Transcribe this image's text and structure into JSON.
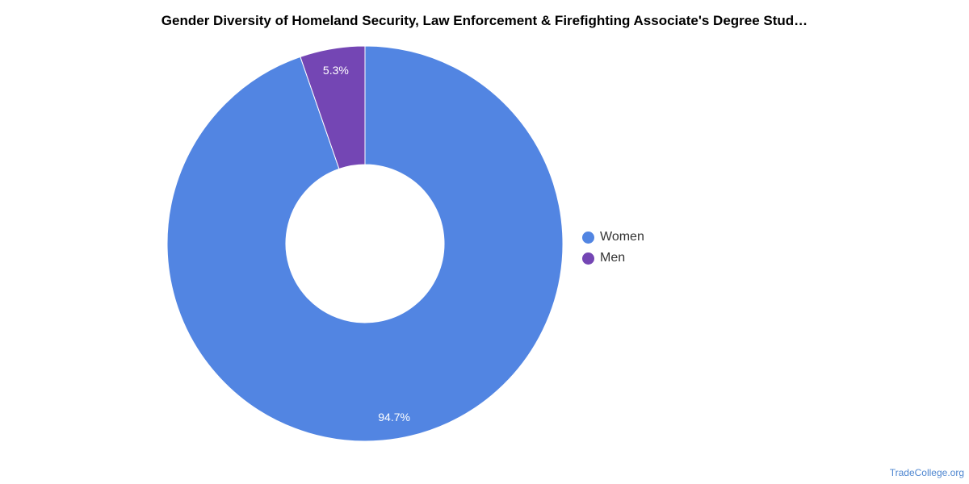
{
  "chart_data": {
    "type": "pie",
    "title": "Gender Diversity of Homeland Security, Law Enforcement & Firefighting Associate's Degree Stud…",
    "donut": true,
    "legend_placement": "right",
    "series": [
      {
        "name": "Women",
        "value": 94.7,
        "label": "94.7%",
        "color": "#5285e2"
      },
      {
        "name": "Men",
        "value": 5.3,
        "label": "5.3%",
        "color": "#7446b4"
      }
    ]
  },
  "watermark": "TradeCollege.org"
}
